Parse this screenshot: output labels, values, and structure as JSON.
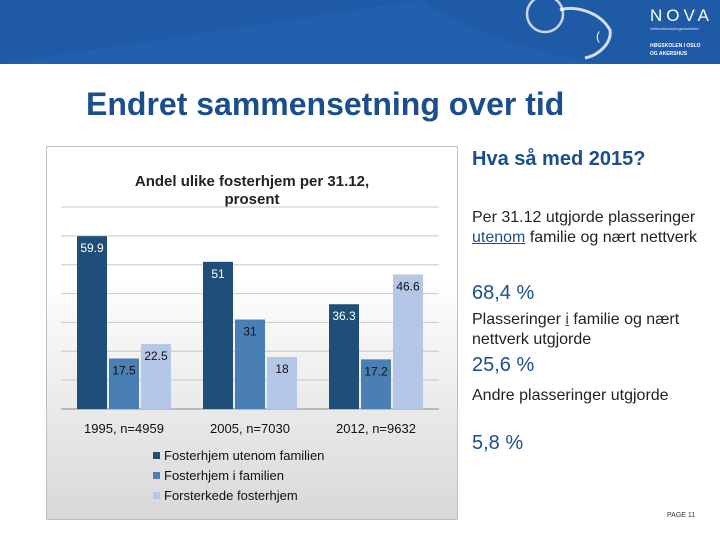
{
  "slide": {
    "title": "Endret sammensetning over tid",
    "page_label": "PAGE 11"
  },
  "logo": {
    "name": "NOVA",
    "subtitle": "Velferdsforskningsinstituttet",
    "school_line1": "HØGSKOLEN I OSLO",
    "school_line2": "OG AKERSHUS"
  },
  "right_panel": {
    "heading": "Hva så med 2015?",
    "p1_before": "Per 31.12 utgjorde plasseringer ",
    "p1_underlined": "utenom",
    "p1_after": " familie og nært nettverk",
    "p1_value": "68,4 %",
    "p2_before": "Plasseringer ",
    "p2_underlined": "i",
    "p2_after": " familie og nært nettverk utgjorde",
    "p2_value": "25,6 %",
    "p3_text": "Andre plasseringer utgjorde",
    "p3_value": "5,8 %"
  },
  "colors": {
    "series": [
      "#1f4e79",
      "#4a7fb5",
      "#b4c7e7"
    ],
    "banner": "#1f5aa6",
    "title": "#1a4e8c"
  },
  "chart_data": {
    "type": "bar",
    "title": "Andel ulike fosterhjem per 31.12, prosent",
    "categories": [
      "1995, n=4959",
      "2005, n=7030",
      "2012, n=9632"
    ],
    "series": [
      {
        "name": "Fosterhjem utenom familien",
        "values": [
          59.9,
          51,
          36.3
        ]
      },
      {
        "name": "Fosterhjem i familien",
        "values": [
          17.5,
          31,
          17.2
        ]
      },
      {
        "name": "Forsterkede fosterhjem",
        "values": [
          22.5,
          18,
          46.6
        ]
      }
    ],
    "ylim": [
      0,
      70
    ],
    "grid": true,
    "legend": "bottom",
    "xlabel": "",
    "ylabel": ""
  }
}
